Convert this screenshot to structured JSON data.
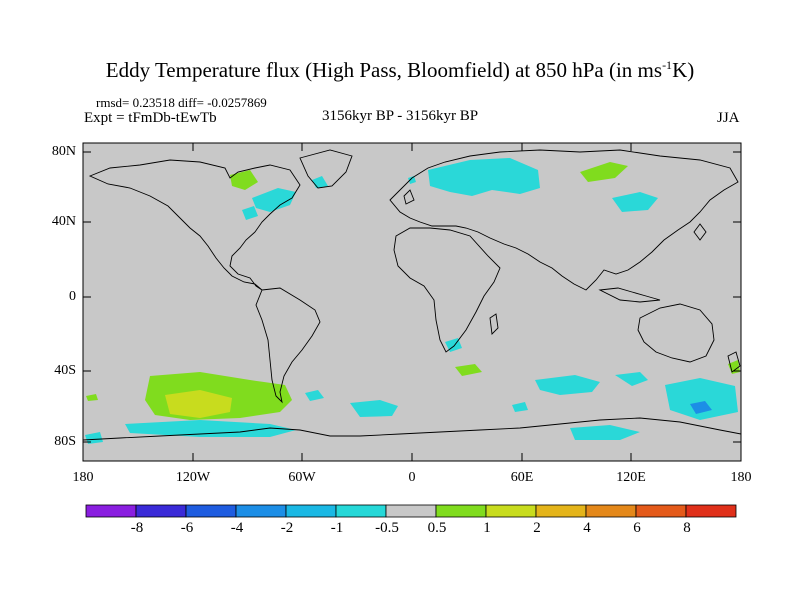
{
  "title": "Eddy Temperature flux (High Pass, Bloomfield) at 850 hPa (in ms",
  "title_sup": "-1",
  "title_end": "K)",
  "stats": "rmsd= 0.23518 diff= -0.0257869",
  "expt": "Expt = tFmDb-tEwTb",
  "period": "3156kyr BP - 3156kyr BP",
  "season": "JJA",
  "lat_labels": [
    "80N",
    "40N",
    "0",
    "40S",
    "80S"
  ],
  "lon_labels": [
    "180",
    "120W",
    "60W",
    "0",
    "60E",
    "120E",
    "180"
  ],
  "colorbar": {
    "labels": [
      "-8",
      "-6",
      "-4",
      "-2",
      "-1",
      "-0.5",
      "0.5",
      "1",
      "2",
      "4",
      "6",
      "8"
    ],
    "colors": [
      "#8a1ee0",
      "#3a2ad8",
      "#1e5ce0",
      "#1c8ee6",
      "#1ab8e4",
      "#26d8d8",
      "#c8c8c8",
      "#80dc1e",
      "#c8dc1e",
      "#e4b41a",
      "#e4881a",
      "#e45a1a",
      "#e0301a"
    ]
  },
  "map_colors": {
    "background": "#c8c8c8",
    "cyan": "#2ad8d8",
    "green": "#80dc1e",
    "yellow": "#c8dc1e",
    "blue": "#1c8ee6"
  }
}
